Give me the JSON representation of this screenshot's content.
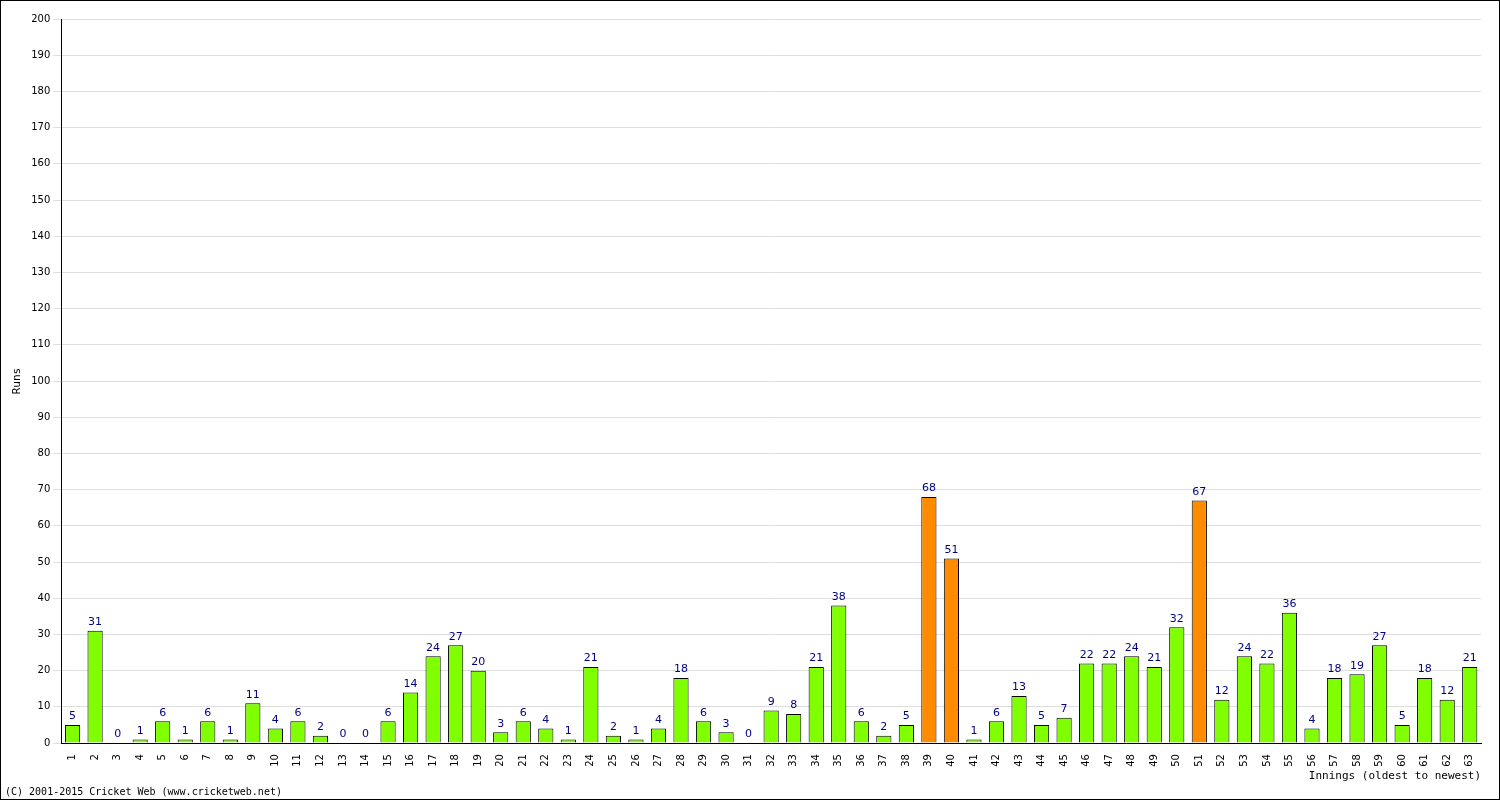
{
  "chart_data": {
    "type": "bar",
    "categories": [
      "1",
      "2",
      "3",
      "4",
      "5",
      "6",
      "7",
      "8",
      "9",
      "10",
      "11",
      "12",
      "13",
      "14",
      "15",
      "16",
      "17",
      "18",
      "19",
      "20",
      "21",
      "22",
      "23",
      "24",
      "25",
      "26",
      "27",
      "28",
      "29",
      "30",
      "31",
      "32",
      "33",
      "34",
      "35",
      "36",
      "37",
      "38",
      "39",
      "40",
      "41",
      "42",
      "43",
      "44",
      "45",
      "46",
      "47",
      "48",
      "49",
      "50",
      "51",
      "52",
      "53",
      "54",
      "55",
      "56",
      "57",
      "58",
      "59",
      "60",
      "61",
      "62",
      "63"
    ],
    "values": [
      5,
      31,
      0,
      1,
      6,
      1,
      6,
      1,
      11,
      4,
      6,
      2,
      0,
      0,
      6,
      14,
      24,
      27,
      20,
      3,
      6,
      4,
      1,
      21,
      2,
      1,
      4,
      18,
      6,
      3,
      0,
      9,
      8,
      21,
      38,
      6,
      2,
      5,
      68,
      51,
      1,
      6,
      13,
      5,
      7,
      22,
      22,
      24,
      21,
      32,
      67,
      12,
      24,
      22,
      36,
      4,
      18,
      19,
      27,
      5,
      18,
      12,
      21
    ],
    "colors": [
      "#80ff00",
      "#80ff00",
      "#80ff00",
      "#80ff00",
      "#80ff00",
      "#80ff00",
      "#80ff00",
      "#80ff00",
      "#80ff00",
      "#80ff00",
      "#80ff00",
      "#80ff00",
      "#80ff00",
      "#80ff00",
      "#80ff00",
      "#80ff00",
      "#80ff00",
      "#80ff00",
      "#80ff00",
      "#80ff00",
      "#80ff00",
      "#80ff00",
      "#80ff00",
      "#80ff00",
      "#80ff00",
      "#80ff00",
      "#80ff00",
      "#80ff00",
      "#80ff00",
      "#80ff00",
      "#80ff00",
      "#80ff00",
      "#80ff00",
      "#80ff00",
      "#80ff00",
      "#80ff00",
      "#80ff00",
      "#80ff00",
      "#ff8c00",
      "#ff8c00",
      "#80ff00",
      "#80ff00",
      "#80ff00",
      "#80ff00",
      "#80ff00",
      "#80ff00",
      "#80ff00",
      "#80ff00",
      "#80ff00",
      "#80ff00",
      "#ff8c00",
      "#80ff00",
      "#80ff00",
      "#80ff00",
      "#80ff00",
      "#80ff00",
      "#80ff00",
      "#80ff00",
      "#80ff00",
      "#80ff00",
      "#80ff00",
      "#80ff00",
      "#80ff00"
    ],
    "x_label": "Innings (oldest to newest)",
    "y_label": "Runs",
    "ylim": [
      0,
      200
    ],
    "yticks": [
      0,
      10,
      20,
      30,
      40,
      50,
      60,
      70,
      80,
      90,
      100,
      110,
      120,
      130,
      140,
      150,
      160,
      170,
      180,
      190,
      200
    ],
    "grid": true,
    "data_labels": true,
    "annotations": [
      "(C) 2001-2015 Cricket Web (www.cricketweb.net)"
    ]
  }
}
